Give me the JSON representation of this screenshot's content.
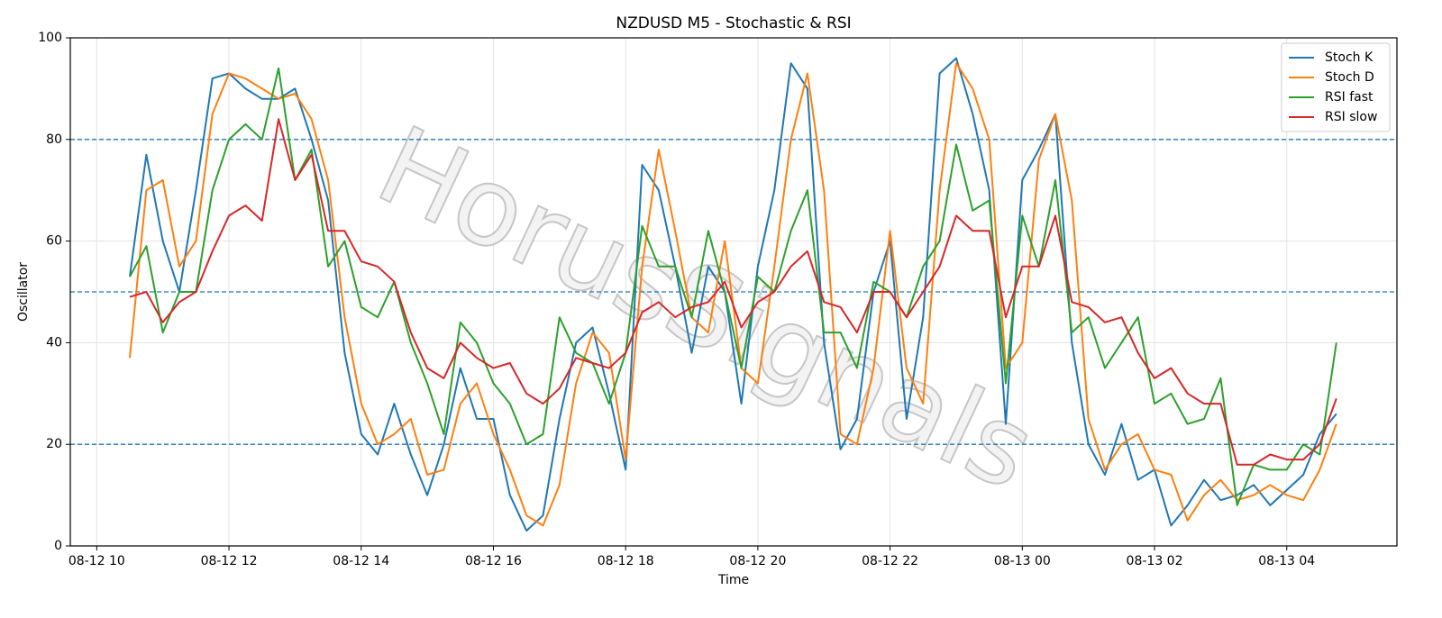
{
  "chart_data": {
    "type": "line",
    "title": "NZDUSD M5 - Stochastic & RSI",
    "x_label": "Time",
    "y_label": "Oscillator",
    "watermark": "HorusSignals",
    "x": [
      "08-12 10:30",
      "08-12 10:45",
      "08-12 11:00",
      "08-12 11:15",
      "08-12 11:30",
      "08-12 11:45",
      "08-12 12:00",
      "08-12 12:15",
      "08-12 12:30",
      "08-12 12:45",
      "08-12 13:00",
      "08-12 13:15",
      "08-12 13:30",
      "08-12 13:45",
      "08-12 14:00",
      "08-12 14:15",
      "08-12 14:30",
      "08-12 14:45",
      "08-12 15:00",
      "08-12 15:15",
      "08-12 15:30",
      "08-12 15:45",
      "08-12 16:00",
      "08-12 16:15",
      "08-12 16:30",
      "08-12 16:45",
      "08-12 17:00",
      "08-12 17:15",
      "08-12 17:30",
      "08-12 17:45",
      "08-12 18:00",
      "08-12 18:15",
      "08-12 18:30",
      "08-12 18:45",
      "08-12 19:00",
      "08-12 19:15",
      "08-12 19:30",
      "08-12 19:45",
      "08-12 20:00",
      "08-12 20:15",
      "08-12 20:30",
      "08-12 20:45",
      "08-12 21:00",
      "08-12 21:15",
      "08-12 21:30",
      "08-12 21:45",
      "08-12 22:00",
      "08-12 22:15",
      "08-12 22:30",
      "08-12 22:45",
      "08-12 23:00",
      "08-12 23:15",
      "08-12 23:30",
      "08-12 23:45",
      "08-13 00:00",
      "08-13 00:15",
      "08-13 00:30",
      "08-13 00:45",
      "08-13 01:00",
      "08-13 01:15",
      "08-13 01:30",
      "08-13 01:45",
      "08-13 02:00",
      "08-13 02:15",
      "08-13 02:30",
      "08-13 02:45",
      "08-13 03:00",
      "08-13 03:15",
      "08-13 03:30",
      "08-13 03:45",
      "08-13 04:00",
      "08-13 04:15",
      "08-13 04:30",
      "08-13 04:45"
    ],
    "series": [
      {
        "name": "Stoch K",
        "color": "#1f77b4",
        "values": [
          53,
          77,
          60,
          50,
          70,
          92,
          93,
          90,
          88,
          88,
          90,
          80,
          68,
          38,
          22,
          18,
          28,
          18,
          10,
          20,
          35,
          25,
          25,
          10,
          3,
          6,
          25,
          40,
          43,
          30,
          15,
          75,
          70,
          55,
          38,
          55,
          50,
          28,
          55,
          70,
          95,
          90,
          40,
          19,
          25,
          50,
          60,
          25,
          45,
          93,
          96,
          85,
          70,
          24,
          72,
          78,
          85,
          40,
          20,
          14,
          24,
          13,
          15,
          4,
          8,
          13,
          9,
          10,
          12,
          8,
          11,
          14,
          22,
          26
        ]
      },
      {
        "name": "Stoch D",
        "color": "#ff7f0e",
        "values": [
          37,
          70,
          72,
          55,
          60,
          85,
          93,
          92,
          90,
          88,
          89,
          84,
          72,
          45,
          28,
          20,
          22,
          25,
          14,
          15,
          28,
          32,
          22,
          15,
          6,
          4,
          12,
          32,
          42,
          38,
          17,
          55,
          78,
          62,
          45,
          42,
          60,
          35,
          32,
          55,
          80,
          93,
          70,
          22,
          20,
          35,
          62,
          35,
          28,
          70,
          95,
          90,
          80,
          35,
          40,
          76,
          85,
          68,
          25,
          15,
          20,
          22,
          15,
          14,
          5,
          10,
          13,
          9,
          10,
          12,
          10,
          9,
          15,
          24
        ]
      },
      {
        "name": "RSI fast",
        "color": "#2ca02c",
        "values": [
          53,
          59,
          42,
          50,
          50,
          70,
          80,
          83,
          80,
          94,
          72,
          78,
          55,
          60,
          47,
          45,
          52,
          40,
          32,
          22,
          44,
          40,
          32,
          28,
          20,
          22,
          45,
          38,
          36,
          28,
          38,
          63,
          55,
          55,
          45,
          62,
          50,
          35,
          53,
          50,
          62,
          70,
          42,
          42,
          35,
          52,
          50,
          45,
          55,
          60,
          79,
          66,
          68,
          32,
          65,
          55,
          72,
          42,
          45,
          35,
          40,
          45,
          28,
          30,
          24,
          25,
          33,
          8,
          16,
          15,
          15,
          20,
          18,
          40
        ]
      },
      {
        "name": "RSI slow",
        "color": "#d62728",
        "values": [
          49,
          50,
          44,
          48,
          50,
          58,
          65,
          67,
          64,
          84,
          72,
          77,
          62,
          62,
          56,
          55,
          52,
          42,
          35,
          33,
          40,
          37,
          35,
          36,
          30,
          28,
          31,
          37,
          36,
          35,
          38,
          46,
          48,
          45,
          47,
          48,
          52,
          43,
          48,
          50,
          55,
          58,
          48,
          47,
          42,
          50,
          50,
          45,
          50,
          55,
          65,
          62,
          62,
          45,
          55,
          55,
          65,
          48,
          47,
          44,
          45,
          38,
          33,
          35,
          30,
          28,
          28,
          16,
          16,
          18,
          17,
          17,
          20,
          29
        ]
      }
    ],
    "hlines": [
      20,
      50,
      80
    ],
    "hline_color": "#1f77b4",
    "xlim": [
      "08-12 09:36",
      "08-13 05:40"
    ],
    "xticks": [
      {
        "value": "08-12 10:00",
        "label": "08-12 10"
      },
      {
        "value": "08-12 12:00",
        "label": "08-12 12"
      },
      {
        "value": "08-12 14:00",
        "label": "08-12 14"
      },
      {
        "value": "08-12 16:00",
        "label": "08-12 16"
      },
      {
        "value": "08-12 18:00",
        "label": "08-12 18"
      },
      {
        "value": "08-12 20:00",
        "label": "08-12 20"
      },
      {
        "value": "08-12 22:00",
        "label": "08-12 22"
      },
      {
        "value": "08-13 00:00",
        "label": "08-13 00"
      },
      {
        "value": "08-13 02:00",
        "label": "08-13 02"
      },
      {
        "value": "08-13 04:00",
        "label": "08-13 04"
      }
    ],
    "ylim": [
      0,
      100
    ],
    "yticks": [
      0,
      20,
      40,
      60,
      80,
      100
    ],
    "grid": true,
    "legend": "upper right"
  }
}
